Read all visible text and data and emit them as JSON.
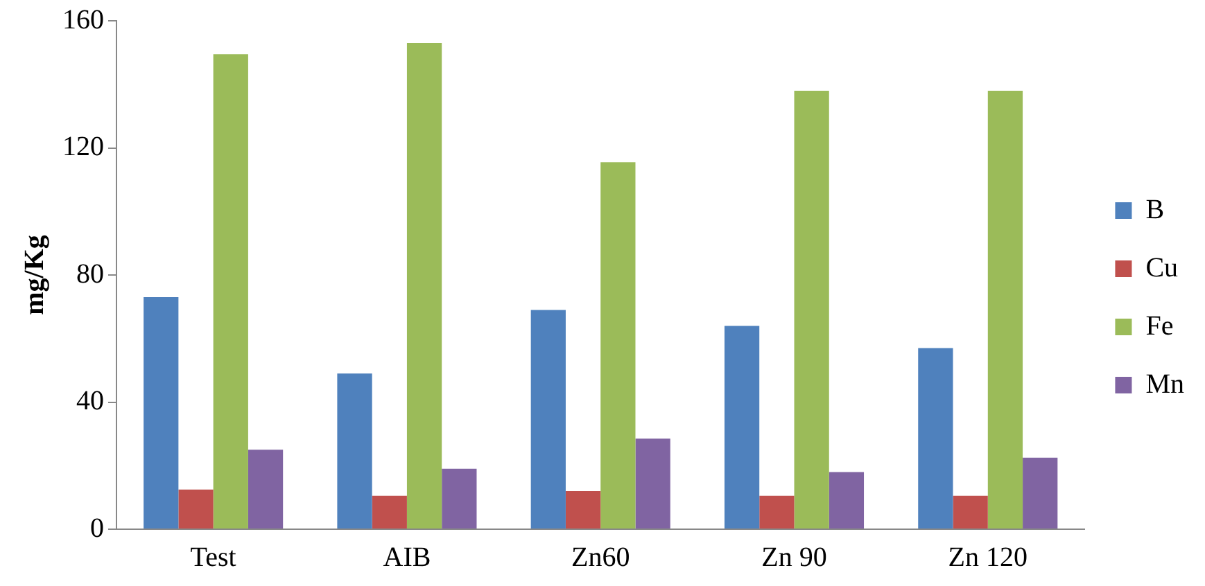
{
  "chart_data": {
    "type": "bar",
    "ylabel": "mg/Kg",
    "categories": [
      "Test",
      "AIB",
      "Zn60",
      "Zn 90",
      "Zn 120"
    ],
    "series": [
      {
        "name": "B",
        "color": "#4f81bd",
        "values": [
          73,
          49,
          69,
          64,
          57
        ]
      },
      {
        "name": "Cu",
        "color": "#c0504d",
        "values": [
          12.5,
          10.5,
          12,
          10.5,
          10.5
        ]
      },
      {
        "name": "Fe",
        "color": "#9bbb59",
        "values": [
          149.5,
          153,
          115.5,
          138,
          138
        ]
      },
      {
        "name": "Mn",
        "color": "#8064a2",
        "values": [
          25,
          19,
          28.5,
          18,
          22.5
        ]
      }
    ],
    "ylim": [
      0,
      160
    ],
    "yticks": [
      0,
      40,
      80,
      120,
      160
    ],
    "grid": false,
    "legend": "right"
  }
}
